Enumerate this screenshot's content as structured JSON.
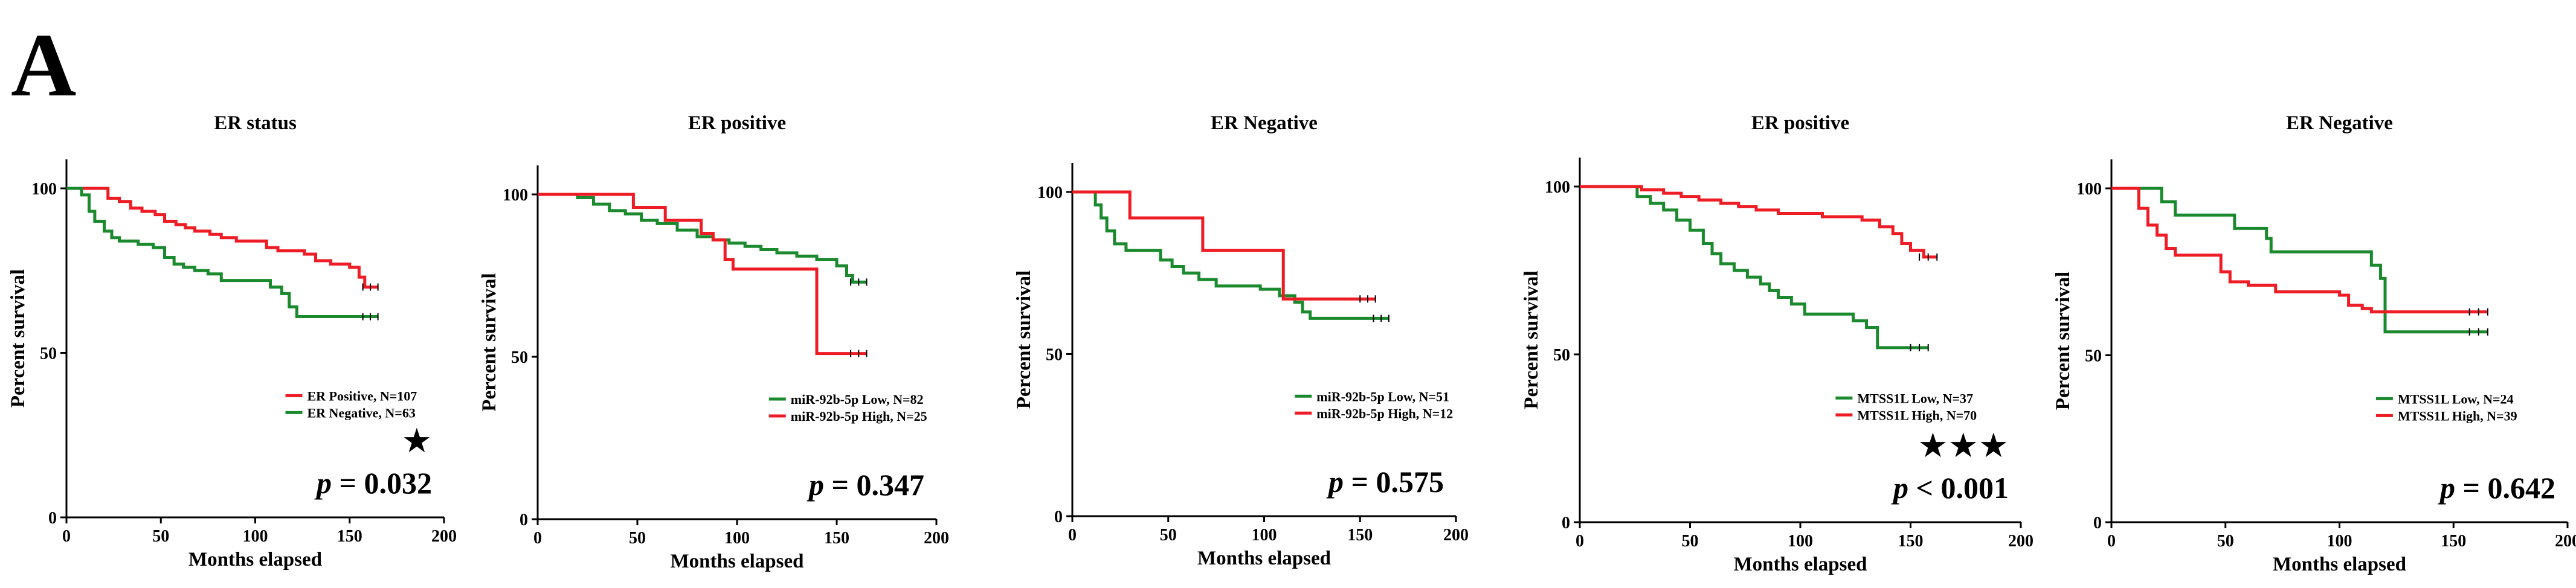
{
  "panel_label": "A",
  "colors": {
    "red": "#ee1c25",
    "green": "#1b8a2e",
    "axis": "#000000"
  },
  "chart_data": [
    {
      "type": "line",
      "title": "ER status",
      "xlabel": "Months elapsed",
      "ylabel": "Percent survival",
      "xlim": [
        0,
        200
      ],
      "ylim": [
        0,
        100
      ],
      "xticks": [
        "0",
        "50",
        "100",
        "150",
        "200"
      ],
      "yticks": [
        "0",
        "50",
        "100"
      ],
      "pvalue": "= 0.032",
      "stars": "★",
      "legend_position": "lower-right",
      "series": [
        {
          "name": "ER Positive, N=107",
          "color": "red",
          "points": [
            [
              0,
              100
            ],
            [
              15,
              100
            ],
            [
              22,
              97
            ],
            [
              28,
              96
            ],
            [
              34,
              94
            ],
            [
              40,
              93
            ],
            [
              47,
              92
            ],
            [
              52,
              90
            ],
            [
              58,
              89
            ],
            [
              63,
              88
            ],
            [
              68,
              87
            ],
            [
              76,
              86
            ],
            [
              82,
              85
            ],
            [
              90,
              84
            ],
            [
              100,
              84
            ],
            [
              106,
              82
            ],
            [
              112,
              81
            ],
            [
              118,
              81
            ],
            [
              126,
              80
            ],
            [
              132,
              78
            ],
            [
              140,
              77
            ],
            [
              150,
              76
            ],
            [
              155,
              73
            ],
            [
              158,
              70
            ],
            [
              165,
              70
            ]
          ]
        },
        {
          "name": "ER Negative, N=63",
          "color": "green",
          "points": [
            [
              0,
              100
            ],
            [
              8,
              98
            ],
            [
              12,
              93
            ],
            [
              15,
              90
            ],
            [
              20,
              87
            ],
            [
              24,
              85
            ],
            [
              28,
              84
            ],
            [
              38,
              83
            ],
            [
              46,
              82
            ],
            [
              52,
              79
            ],
            [
              57,
              77
            ],
            [
              62,
              76
            ],
            [
              68,
              75
            ],
            [
              75,
              74
            ],
            [
              82,
              72
            ],
            [
              95,
              72
            ],
            [
              100,
              72
            ],
            [
              108,
              70
            ],
            [
              114,
              68
            ],
            [
              118,
              64
            ],
            [
              122,
              61
            ],
            [
              165,
              61
            ]
          ]
        }
      ]
    },
    {
      "type": "line",
      "title": "ER positive",
      "xlabel": "Months elapsed",
      "ylabel": "Percent survival",
      "xlim": [
        0,
        200
      ],
      "ylim": [
        0,
        100
      ],
      "xticks": [
        "0",
        "50",
        "100",
        "150",
        "200"
      ],
      "yticks": [
        "0",
        "50",
        "100"
      ],
      "pvalue": "= 0.347",
      "stars": "",
      "legend_position": "lower-right",
      "series": [
        {
          "name": "miR-92b-5p Low, N=82",
          "color": "green",
          "points": [
            [
              0,
              100
            ],
            [
              20,
              99
            ],
            [
              28,
              97
            ],
            [
              36,
              95
            ],
            [
              44,
              94
            ],
            [
              52,
              92
            ],
            [
              60,
              91
            ],
            [
              70,
              89
            ],
            [
              80,
              87
            ],
            [
              88,
              86
            ],
            [
              96,
              85
            ],
            [
              104,
              84
            ],
            [
              112,
              83
            ],
            [
              120,
              82
            ],
            [
              130,
              81
            ],
            [
              140,
              80
            ],
            [
              150,
              78
            ],
            [
              155,
              75
            ],
            [
              158,
              73
            ],
            [
              165,
              73
            ]
          ]
        },
        {
          "name": "miR-92b-5p High, N=25",
          "color": "red",
          "points": [
            [
              0,
              100
            ],
            [
              45,
              100
            ],
            [
              48,
              96
            ],
            [
              60,
              96
            ],
            [
              64,
              92
            ],
            [
              78,
              92
            ],
            [
              82,
              88
            ],
            [
              88,
              86
            ],
            [
              94,
              80
            ],
            [
              98,
              77
            ],
            [
              138,
              77
            ],
            [
              140,
              51
            ],
            [
              165,
              51
            ]
          ]
        }
      ]
    },
    {
      "type": "line",
      "title": "ER Negative",
      "xlabel": "Months elapsed",
      "ylabel": "Percent survival",
      "xlim": [
        0,
        200
      ],
      "ylim": [
        0,
        100
      ],
      "xticks": [
        "0",
        "50",
        "100",
        "150",
        "200"
      ],
      "yticks": [
        "0",
        "50",
        "100"
      ],
      "pvalue": "= 0.575",
      "stars": "",
      "legend_position": "lower-right",
      "series": [
        {
          "name": "miR-92b-5p Low, N=51",
          "color": "green",
          "points": [
            [
              0,
              100
            ],
            [
              10,
              100
            ],
            [
              12,
              96
            ],
            [
              15,
              92
            ],
            [
              18,
              88
            ],
            [
              22,
              84
            ],
            [
              28,
              82
            ],
            [
              42,
              82
            ],
            [
              46,
              79
            ],
            [
              52,
              77
            ],
            [
              58,
              75
            ],
            [
              66,
              73
            ],
            [
              75,
              71
            ],
            [
              88,
              71
            ],
            [
              98,
              70
            ],
            [
              108,
              68
            ],
            [
              116,
              66
            ],
            [
              120,
              63
            ],
            [
              124,
              61
            ],
            [
              165,
              61
            ]
          ]
        },
        {
          "name": "miR-92b-5p High, N=12",
          "color": "red",
          "points": [
            [
              0,
              100
            ],
            [
              28,
              100
            ],
            [
              30,
              92
            ],
            [
              66,
              92
            ],
            [
              68,
              82
            ],
            [
              108,
              82
            ],
            [
              110,
              67
            ],
            [
              158,
              67
            ]
          ]
        }
      ]
    },
    {
      "type": "line",
      "title": "ER positive",
      "xlabel": "Months elapsed",
      "ylabel": "Percent survival",
      "xlim": [
        0,
        200
      ],
      "ylim": [
        0,
        100
      ],
      "xticks": [
        "0",
        "50",
        "100",
        "150",
        "200"
      ],
      "yticks": [
        "0",
        "50",
        "100"
      ],
      "pvalue": "< 0.001",
      "stars": "★★★",
      "legend_position": "lower-right",
      "series": [
        {
          "name": "MTSS1L Low, N=37",
          "color": "green",
          "points": [
            [
              0,
              100
            ],
            [
              22,
              100
            ],
            [
              26,
              97
            ],
            [
              32,
              95
            ],
            [
              38,
              93
            ],
            [
              44,
              90
            ],
            [
              50,
              87
            ],
            [
              56,
              83
            ],
            [
              60,
              80
            ],
            [
              64,
              77
            ],
            [
              70,
              75
            ],
            [
              76,
              73
            ],
            [
              82,
              71
            ],
            [
              86,
              69
            ],
            [
              90,
              67
            ],
            [
              96,
              65
            ],
            [
              102,
              62
            ],
            [
              118,
              62
            ],
            [
              124,
              60
            ],
            [
              130,
              58
            ],
            [
              135,
              52
            ],
            [
              158,
              52
            ]
          ]
        },
        {
          "name": "MTSS1L High, N=70",
          "color": "red",
          "points": [
            [
              0,
              100
            ],
            [
              24,
              100
            ],
            [
              28,
              99
            ],
            [
              38,
              98
            ],
            [
              46,
              97
            ],
            [
              54,
              96
            ],
            [
              64,
              95
            ],
            [
              72,
              94
            ],
            [
              80,
              93
            ],
            [
              90,
              92
            ],
            [
              100,
              92
            ],
            [
              110,
              91
            ],
            [
              120,
              91
            ],
            [
              128,
              90
            ],
            [
              136,
              88
            ],
            [
              142,
              86
            ],
            [
              146,
              83
            ],
            [
              150,
              81
            ],
            [
              156,
              79
            ],
            [
              162,
              79
            ]
          ]
        }
      ]
    },
    {
      "type": "line",
      "title": "ER Negative",
      "xlabel": "Months elapsed",
      "ylabel": "Percent survival",
      "xlim": [
        0,
        200
      ],
      "ylim": [
        0,
        100
      ],
      "xticks": [
        "0",
        "50",
        "100",
        "150",
        "200"
      ],
      "yticks": [
        "0",
        "50",
        "100"
      ],
      "pvalue": "= 0.642",
      "stars": "",
      "legend_position": "lower-right",
      "series": [
        {
          "name": "MTSS1L Low, N=24",
          "color": "green",
          "points": [
            [
              0,
              100
            ],
            [
              20,
              100
            ],
            [
              22,
              96
            ],
            [
              28,
              92
            ],
            [
              50,
              92
            ],
            [
              54,
              88
            ],
            [
              68,
              85
            ],
            [
              70,
              81
            ],
            [
              110,
              81
            ],
            [
              114,
              77
            ],
            [
              118,
              73
            ],
            [
              120,
              57
            ],
            [
              165,
              57
            ]
          ]
        },
        {
          "name": "MTSS1L High, N=39",
          "color": "red",
          "points": [
            [
              0,
              100
            ],
            [
              10,
              100
            ],
            [
              12,
              94
            ],
            [
              16,
              89
            ],
            [
              20,
              86
            ],
            [
              24,
              82
            ],
            [
              28,
              80
            ],
            [
              44,
              80
            ],
            [
              48,
              75
            ],
            [
              52,
              72
            ],
            [
              60,
              71
            ],
            [
              68,
              71
            ],
            [
              72,
              69
            ],
            [
              88,
              69
            ],
            [
              100,
              68
            ],
            [
              104,
              65
            ],
            [
              110,
              64
            ],
            [
              114,
              63
            ],
            [
              165,
              63
            ]
          ]
        }
      ]
    }
  ]
}
